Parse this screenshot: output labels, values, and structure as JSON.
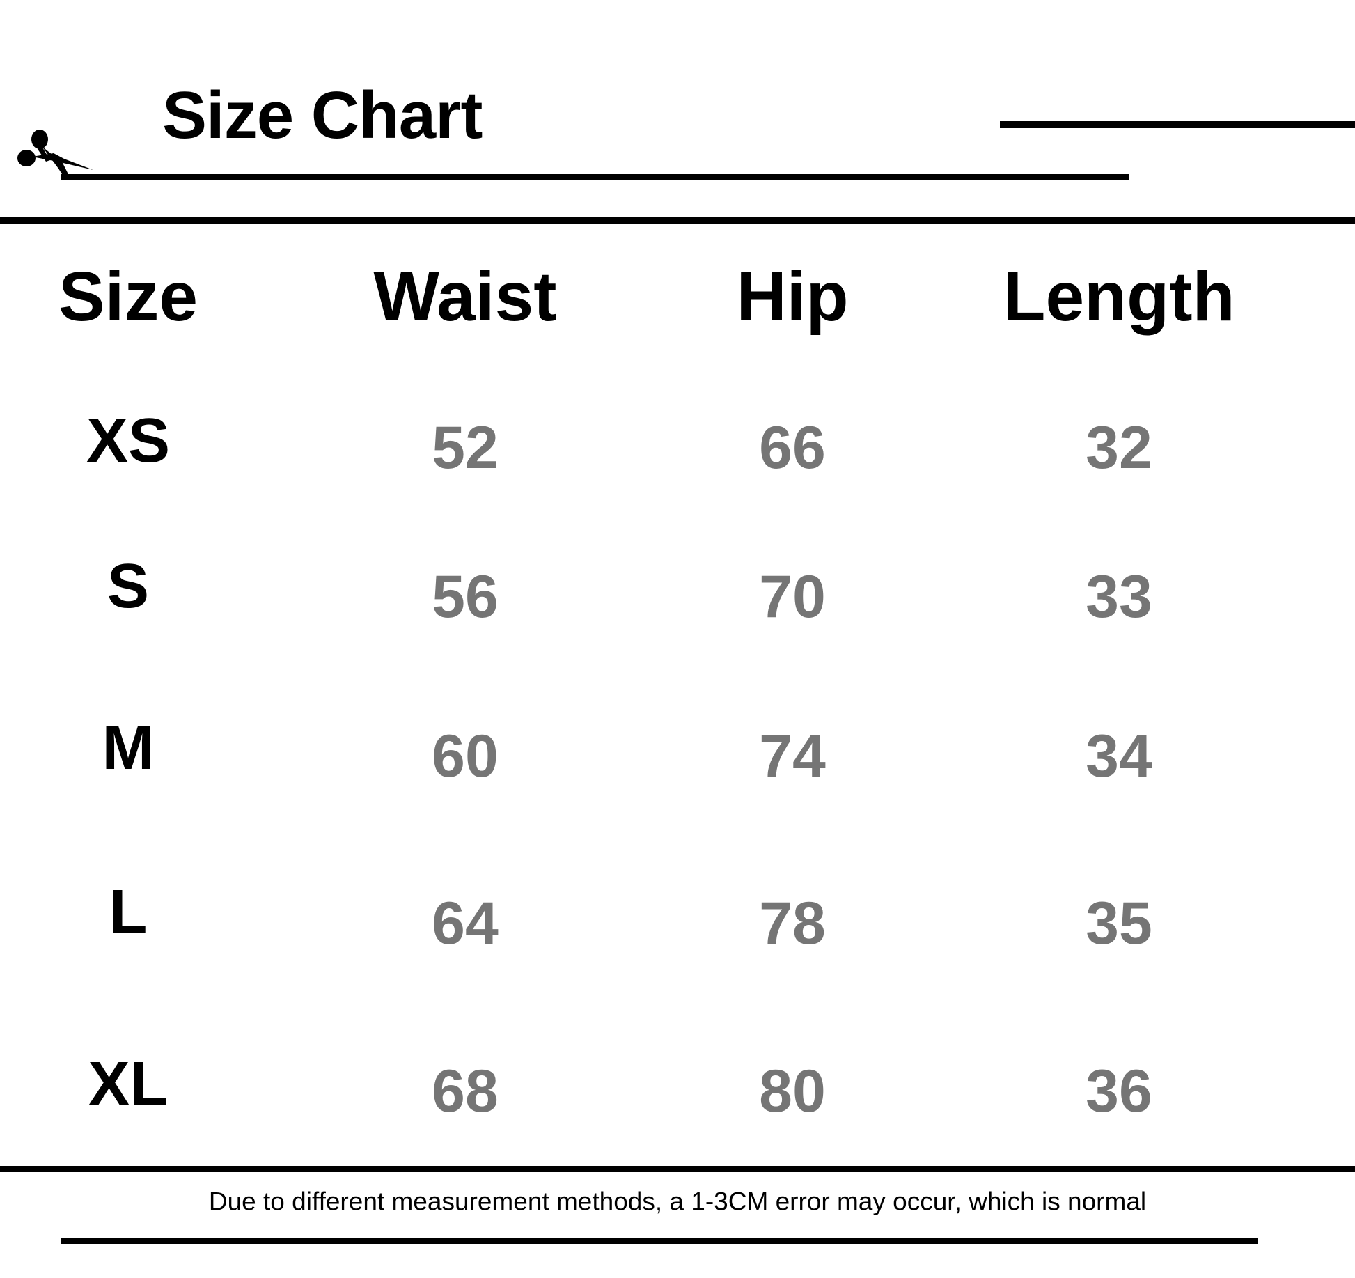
{
  "title": "Size Chart",
  "columns": [
    "Size",
    "Waist",
    "Hip",
    "Length"
  ],
  "rows": [
    {
      "size": "XS",
      "waist": "52",
      "hip": "66",
      "length": "32"
    },
    {
      "size": "S",
      "waist": "56",
      "hip": "70",
      "length": "33"
    },
    {
      "size": "M",
      "waist": "60",
      "hip": "74",
      "length": "34"
    },
    {
      "size": "L",
      "waist": "64",
      "hip": "78",
      "length": "35"
    },
    {
      "size": "XL",
      "waist": "68",
      "hip": "80",
      "length": "36"
    }
  ],
  "footnote": "Due to different measurement methods, a 1-3CM error may occur, which is normal",
  "colors": {
    "text": "#000000",
    "values": "#757575",
    "rules": "#000000"
  },
  "icons": {
    "cut": "scissors-icon"
  }
}
